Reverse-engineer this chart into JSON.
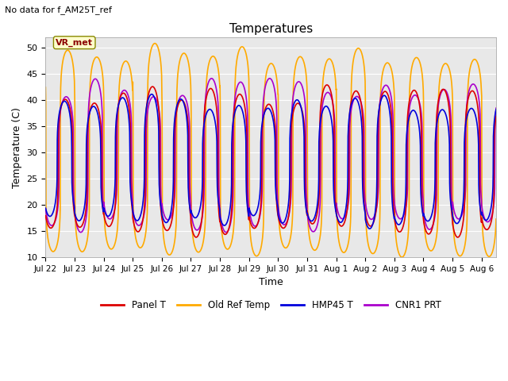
{
  "title": "Temperatures",
  "xlabel": "Time",
  "ylabel": "Temperature (C)",
  "ylim": [
    10,
    52
  ],
  "yticks": [
    10,
    15,
    20,
    25,
    30,
    35,
    40,
    45,
    50
  ],
  "annotation_text": "No data for f_AM25T_ref",
  "vr_met_label": "VR_met",
  "series": {
    "Panel T": {
      "color": "#dd0000",
      "lw": 1.2
    },
    "Old Ref Temp": {
      "color": "#ffaa00",
      "lw": 1.2
    },
    "HMP45 T": {
      "color": "#0000dd",
      "lw": 1.2
    },
    "CNR1 PRT": {
      "color": "#aa00cc",
      "lw": 1.2
    }
  },
  "x_tick_labels": [
    "Jul 22",
    "Jul 23",
    "Jul 24",
    "Jul 25",
    "Jul 26",
    "Jul 27",
    "Jul 28",
    "Jul 29",
    "Jul 30",
    "Jul 31",
    "Aug 1",
    "Aug 2",
    "Aug 3",
    "Aug 4",
    "Aug 5",
    "Aug 6"
  ],
  "background_color": "#e8e8e8",
  "figure_background": "#ffffff",
  "n_days": 15.5,
  "panel_t": {
    "base_min": 15.0,
    "base_max": 41.0,
    "phase": 0.0,
    "sharp": 4.0
  },
  "old_ref": {
    "base_min": 11.5,
    "base_max": 49.0,
    "phase": 0.08,
    "sharp": 6.0
  },
  "hmp45": {
    "base_min": 16.5,
    "base_max": 39.5,
    "phase": -0.03,
    "sharp": 3.5
  },
  "cnr1": {
    "base_min": 16.0,
    "base_max": 42.5,
    "phase": 0.03,
    "sharp": 4.5
  }
}
